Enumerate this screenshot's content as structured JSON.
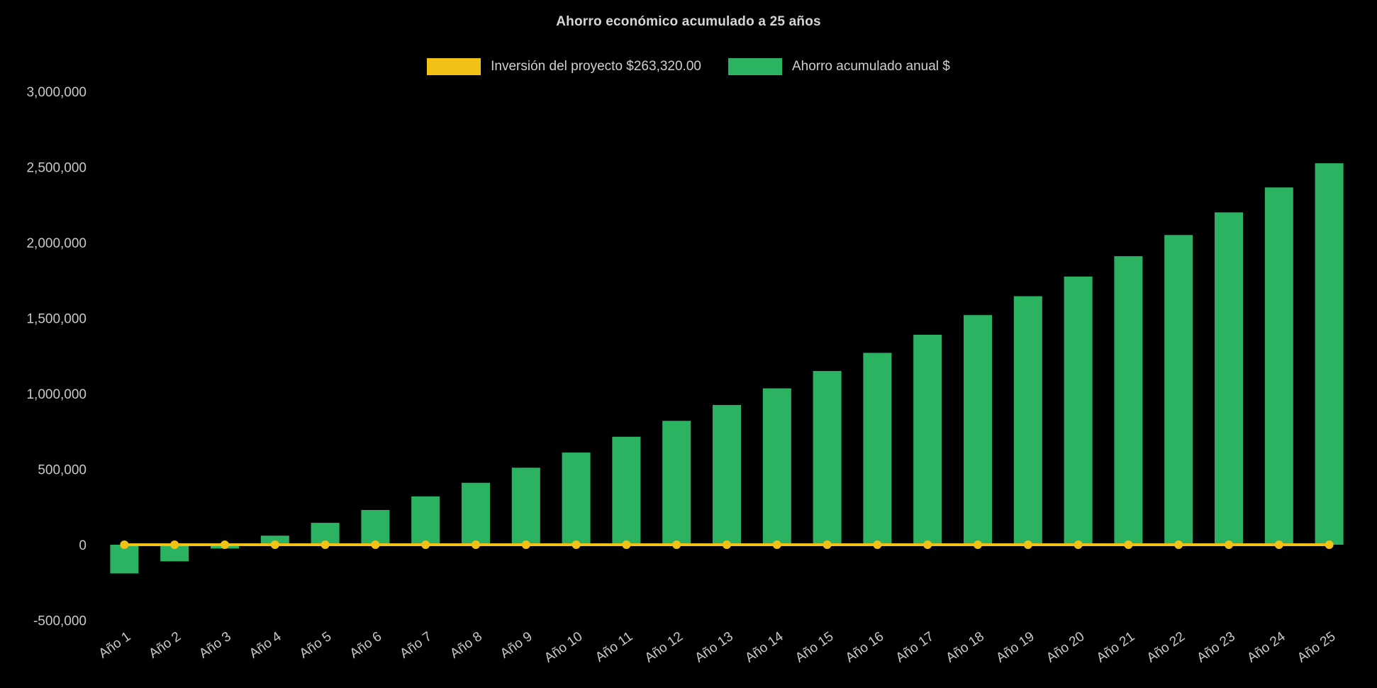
{
  "chart_data": {
    "type": "bar",
    "title": "Ahorro económico acumulado a 25 años",
    "background": "#000000",
    "grid": false,
    "legend_position": "top",
    "ylim": [
      -500000,
      3000000
    ],
    "yticks": [
      3000000,
      2500000,
      2000000,
      1500000,
      1000000,
      500000,
      0,
      -500000
    ],
    "ytick_labels": [
      "3,000,000",
      "2,500,000",
      "2,000,000",
      "1,500,000",
      "1,000,000",
      "500,000",
      "0",
      "-500,000"
    ],
    "categories": [
      "Año 1",
      "Año 2",
      "Año 3",
      "Año 4",
      "Año 5",
      "Año 6",
      "Año 7",
      "Año 8",
      "Año 9",
      "Año 10",
      "Año 11",
      "Año 12",
      "Año 13",
      "Año 14",
      "Año 15",
      "Año 16",
      "Año 17",
      "Año 18",
      "Año 19",
      "Año 20",
      "Año 21",
      "Año 22",
      "Año 23",
      "Año 24",
      "Año 25"
    ],
    "series": [
      {
        "name": "Inversión del proyecto $263,320.00",
        "type": "line",
        "color": "#f1c116",
        "constant_value": 0
      },
      {
        "name": "Ahorro acumulado anual $",
        "type": "bar",
        "color": "#2bb361",
        "values": [
          -190000,
          -110000,
          -25000,
          60000,
          145000,
          230000,
          320000,
          410000,
          510000,
          610000,
          715000,
          820000,
          925000,
          1035000,
          1150000,
          1270000,
          1390000,
          1520000,
          1645000,
          1775000,
          1910000,
          2050000,
          2200000,
          2365000,
          2525000
        ]
      }
    ],
    "axis_text_color": "#c9c9c9"
  }
}
